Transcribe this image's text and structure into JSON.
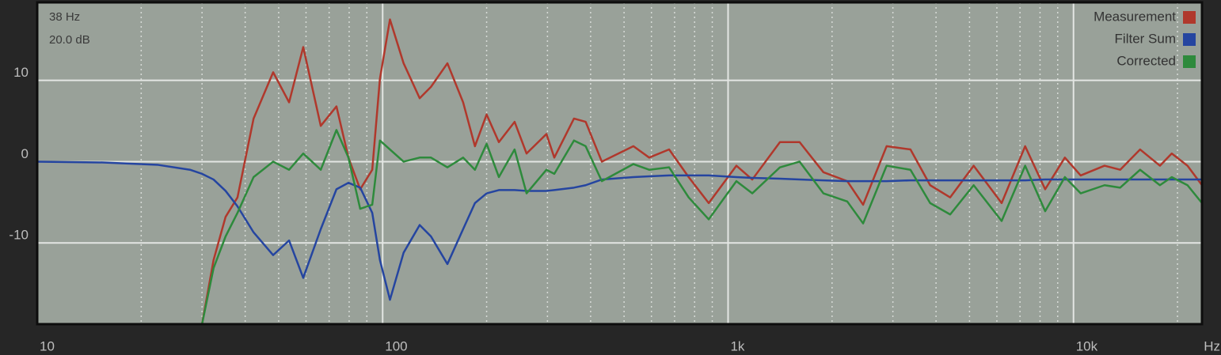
{
  "chart_data": {
    "type": "line",
    "readout": [
      "38 Hz",
      "20.0 dB"
    ],
    "x_label": "Hz",
    "log_x": true,
    "grid": true,
    "legend": "top-right",
    "xlim": [
      10,
      23550
    ],
    "ylim": [
      -20,
      19.6
    ],
    "xticks": [
      10,
      100,
      {
        "value": 1000,
        "label": "1k"
      },
      {
        "value": 10000,
        "label": "10k"
      }
    ],
    "x_minor_ticks": [
      20,
      30,
      40,
      50,
      60,
      70,
      80,
      90,
      200,
      300,
      400,
      500,
      600,
      700,
      800,
      900,
      2000,
      3000,
      4000,
      5000,
      6000,
      7000,
      8000,
      9000,
      20000
    ],
    "yticks": [
      -10,
      0,
      10
    ],
    "x": [
      10,
      15.5,
      22.4,
      27.7,
      30,
      32.4,
      35.1,
      38,
      42.3,
      48.2,
      53.6,
      58.9,
      66.2,
      73.5,
      79.6,
      86.1,
      93.3,
      98.2,
      105,
      115,
      128,
      138,
      154,
      171,
      185,
      200,
      217,
      241,
      261,
      298,
      314,
      358,
      387,
      431,
      532,
      591,
      675,
      769,
      879,
      1057,
      1175,
      1413,
      1611,
      1888,
      2213,
      2460,
      2877,
      3373,
      3846,
      4395,
      5140,
      6194,
      7244,
      8279,
      9441,
      10490,
      12300,
      13650,
      15590,
      17790,
      19250,
      21380,
      23550
    ],
    "series": [
      {
        "name": "Measurement",
        "color": "#b0382c",
        "values": [
          -20,
          -20,
          -20,
          -20,
          -20,
          -12.1,
          -6.8,
          -4.4,
          5.3,
          11.0,
          7.3,
          14.1,
          4.4,
          6.8,
          0.5,
          -3.4,
          -1.0,
          10.2,
          17.5,
          12.1,
          7.8,
          9.2,
          12.1,
          7.3,
          1.9,
          5.8,
          2.4,
          4.9,
          1.0,
          3.4,
          0.5,
          5.3,
          4.9,
          0,
          1.9,
          0.5,
          1.5,
          -1.9,
          -5.1,
          -0.5,
          -2.2,
          2.4,
          2.4,
          -1.3,
          -2.4,
          -5.3,
          1.9,
          1.5,
          -2.9,
          -4.4,
          -0.5,
          -5.1,
          1.9,
          -3.4,
          0.5,
          -1.7,
          -0.5,
          -1.0,
          1.5,
          -0.5,
          1.0,
          -0.5,
          -2.9
        ]
      },
      {
        "name": "Filter Sum",
        "color": "#2545a0",
        "values": [
          0,
          -0.1,
          -0.4,
          -1.0,
          -1.5,
          -2.2,
          -3.6,
          -5.5,
          -8.7,
          -11.5,
          -9.7,
          -14.3,
          -8.3,
          -3.4,
          -2.6,
          -3.2,
          -6.3,
          -12.1,
          -17.0,
          -11.2,
          -7.8,
          -9.2,
          -12.6,
          -8.3,
          -5.1,
          -3.9,
          -3.5,
          -3.5,
          -3.6,
          -3.6,
          -3.5,
          -3.2,
          -2.9,
          -2.2,
          -1.9,
          -1.8,
          -1.7,
          -1.7,
          -1.7,
          -1.9,
          -2.0,
          -2.1,
          -2.2,
          -2.3,
          -2.4,
          -2.4,
          -2.4,
          -2.3,
          -2.3,
          -2.3,
          -2.3,
          -2.3,
          -2.3,
          -2.2,
          -2.2,
          -2.2,
          -2.2,
          -2.2,
          -2.2,
          -2.2,
          -2.2,
          -2.2,
          -2.2
        ]
      },
      {
        "name": "Corrected",
        "color": "#2e8a3c",
        "values": [
          -20,
          -20,
          -20,
          -20,
          -20,
          -13.1,
          -9.2,
          -6.3,
          -1.9,
          0,
          -1.0,
          1.0,
          -1.0,
          3.9,
          0.5,
          -5.8,
          -5.3,
          2.6,
          1.5,
          0,
          0.5,
          0.5,
          -0.7,
          0.5,
          -1.0,
          2.2,
          -1.9,
          1.5,
          -3.9,
          -1.0,
          -1.5,
          2.6,
          1.9,
          -2.4,
          -0.3,
          -1.0,
          -0.7,
          -4.4,
          -7.1,
          -2.4,
          -3.9,
          -0.7,
          0,
          -3.9,
          -4.9,
          -7.6,
          -0.5,
          -1.0,
          -5.1,
          -6.5,
          -2.9,
          -7.3,
          -0.5,
          -6.1,
          -1.9,
          -3.9,
          -2.9,
          -3.2,
          -1.0,
          -2.9,
          -1.9,
          -2.9,
          -5.1
        ]
      }
    ]
  }
}
